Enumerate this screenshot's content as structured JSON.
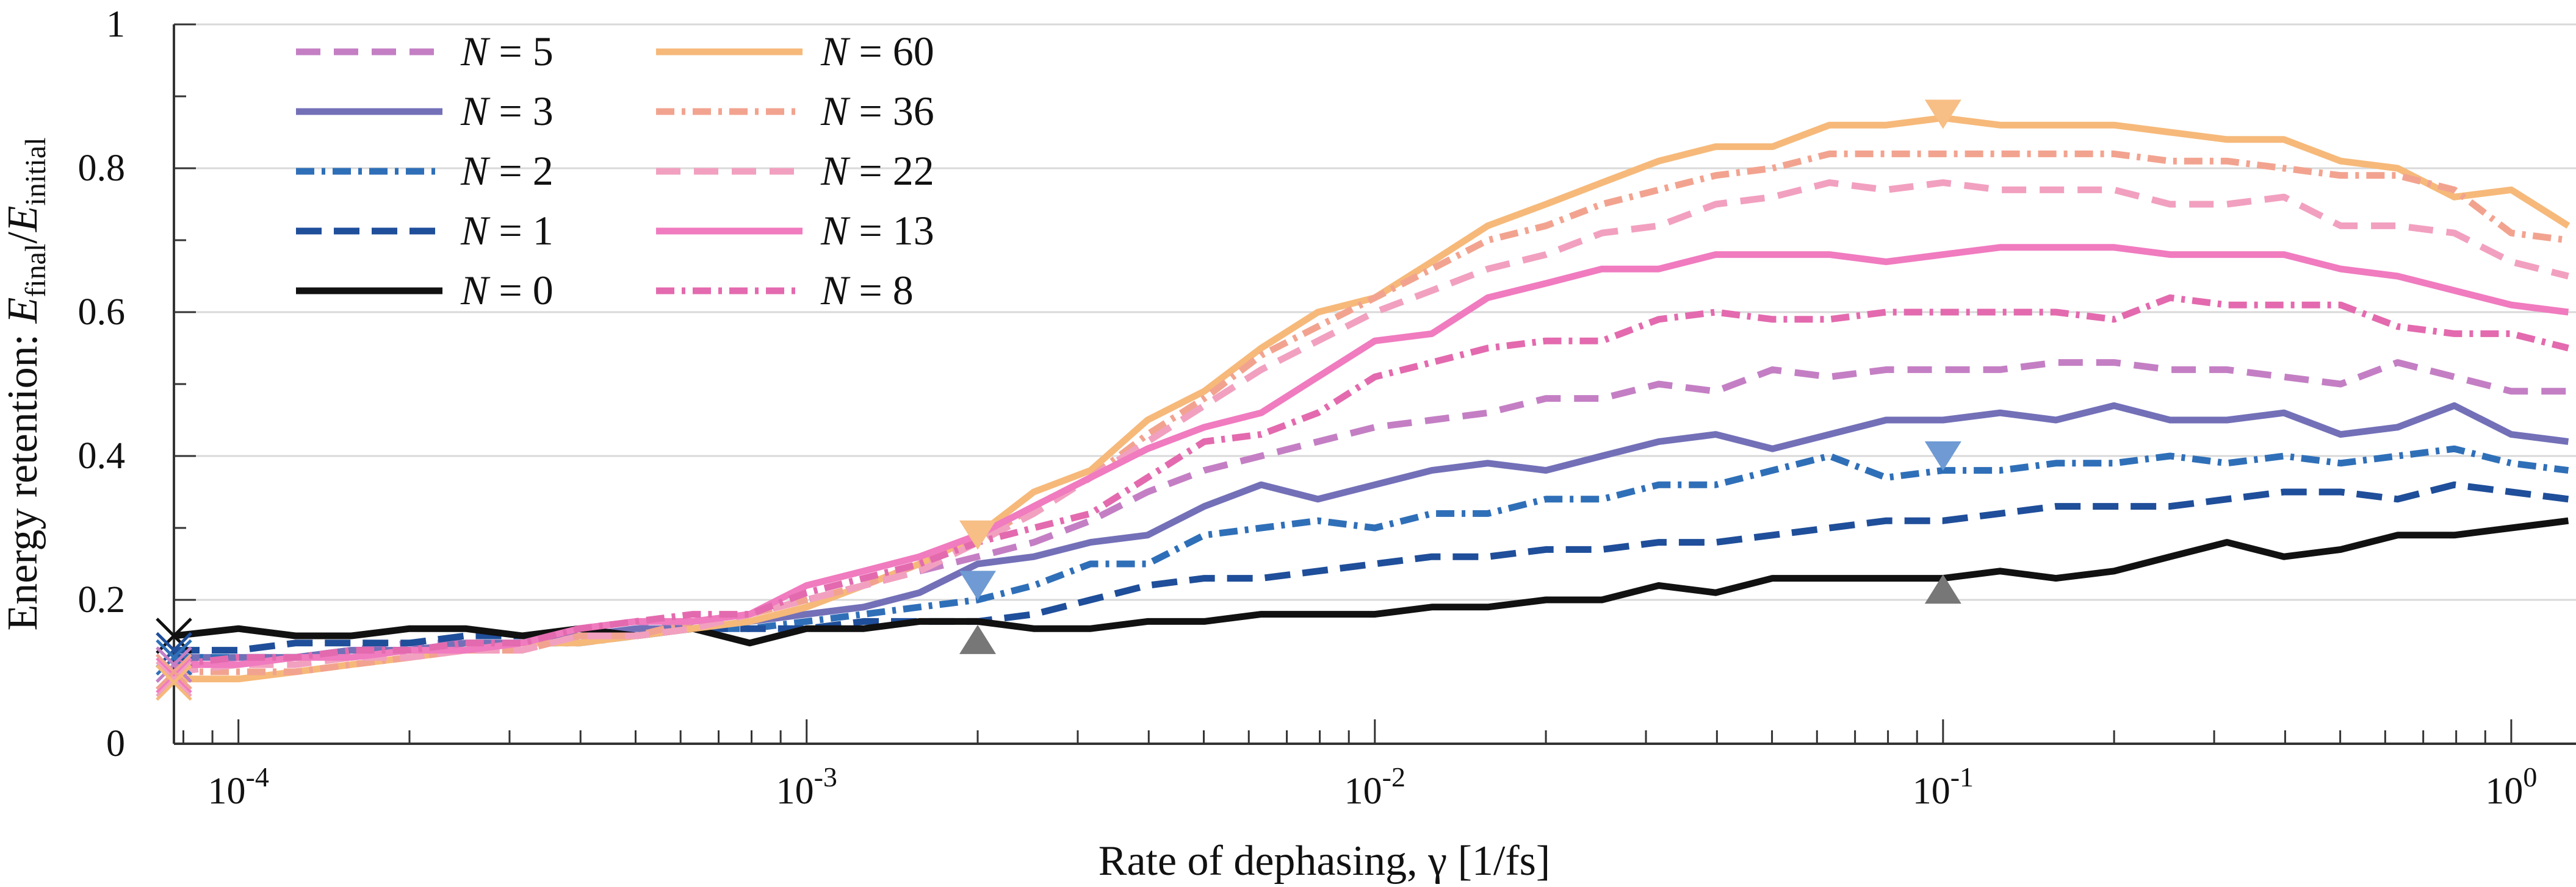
{
  "chart_data": {
    "type": "line",
    "title": "",
    "xlabel": "Rate of dephasing, γ [1/fs]",
    "ylabel": "Energy retention: E_final/E_initial",
    "ylabel_parts": {
      "prefix": "Energy retention: ",
      "num": "E",
      "num_sub": "final",
      "slash": "/",
      "den": "E",
      "den_sub": "initial"
    },
    "xscale": "log",
    "xlim": [
      7.7e-05,
      1.3
    ],
    "ylim": [
      0,
      1
    ],
    "grid": "horizontal",
    "yticks": [
      0,
      0.2,
      0.4,
      0.6,
      0.8,
      1
    ],
    "ytick_labels": [
      "0",
      "0.2",
      "0.4",
      "0.6",
      "0.8",
      "1"
    ],
    "xticks": [
      {
        "value": 0.0001,
        "base": "10",
        "exp": "-4"
      },
      {
        "value": 0.001,
        "base": "10",
        "exp": "-3"
      },
      {
        "value": 0.01,
        "base": "10",
        "exp": "-2"
      },
      {
        "value": 0.1,
        "base": "10",
        "exp": "-1"
      },
      {
        "value": 1,
        "base": "10",
        "exp": "0"
      }
    ],
    "x": [
      0.0001,
      0.000126,
      0.000158,
      0.0002,
      0.000251,
      0.000316,
      0.000398,
      0.000501,
      0.000631,
      0.000794,
      0.001,
      0.00126,
      0.00158,
      0.002,
      0.00251,
      0.00316,
      0.00398,
      0.00501,
      0.00631,
      0.00794,
      0.01,
      0.0126,
      0.0158,
      0.02,
      0.0251,
      0.0316,
      0.0398,
      0.0501,
      0.0631,
      0.0794,
      0.1,
      0.126,
      0.158,
      0.2,
      0.251,
      0.316,
      0.398,
      0.501,
      0.631,
      0.794,
      1,
      1.26
    ],
    "legend": {
      "location": "top-left",
      "columns": 2
    },
    "series": [
      {
        "name": "N = 5",
        "label_n": "N",
        "label_eq": " = ",
        "label_val": "5",
        "color": "#c47fc4",
        "dash": "40 22",
        "y0": 0.11,
        "y": [
          0.12,
          0.12,
          0.13,
          0.14,
          0.14,
          0.14,
          0.16,
          0.17,
          0.16,
          0.18,
          0.2,
          0.22,
          0.24,
          0.26,
          0.28,
          0.31,
          0.35,
          0.38,
          0.4,
          0.42,
          0.44,
          0.45,
          0.46,
          0.48,
          0.48,
          0.5,
          0.49,
          0.52,
          0.51,
          0.52,
          0.52,
          0.52,
          0.53,
          0.53,
          0.52,
          0.52,
          0.51,
          0.5,
          0.53,
          0.51,
          0.49,
          0.49
        ]
      },
      {
        "name": "N = 3",
        "label_n": "N",
        "label_eq": " = ",
        "label_val": "3",
        "color": "#7370b8",
        "dash": "",
        "y0": 0.12,
        "y": [
          0.12,
          0.12,
          0.13,
          0.13,
          0.14,
          0.14,
          0.15,
          0.16,
          0.16,
          0.17,
          0.18,
          0.19,
          0.21,
          0.25,
          0.26,
          0.28,
          0.29,
          0.33,
          0.36,
          0.34,
          0.36,
          0.38,
          0.39,
          0.38,
          0.4,
          0.42,
          0.43,
          0.41,
          0.43,
          0.45,
          0.45,
          0.46,
          0.45,
          0.47,
          0.45,
          0.45,
          0.46,
          0.43,
          0.44,
          0.47,
          0.43,
          0.42
        ]
      },
      {
        "name": "N = 2",
        "label_n": "N",
        "label_eq": " = ",
        "label_val": "2",
        "color": "#2f6fb8",
        "dash": "30 12 6 12",
        "y0": 0.12,
        "y": [
          0.12,
          0.12,
          0.13,
          0.13,
          0.13,
          0.14,
          0.14,
          0.15,
          0.16,
          0.16,
          0.17,
          0.18,
          0.19,
          0.2,
          0.22,
          0.25,
          0.25,
          0.29,
          0.3,
          0.31,
          0.3,
          0.32,
          0.32,
          0.34,
          0.34,
          0.36,
          0.36,
          0.38,
          0.4,
          0.37,
          0.38,
          0.38,
          0.39,
          0.39,
          0.4,
          0.39,
          0.4,
          0.39,
          0.4,
          0.41,
          0.39,
          0.38
        ]
      },
      {
        "name": "N = 1",
        "label_n": "N",
        "label_eq": " = ",
        "label_val": "1",
        "color": "#1f4e9a",
        "dash": "42 20",
        "y0": 0.13,
        "y": [
          0.13,
          0.14,
          0.14,
          0.14,
          0.15,
          0.15,
          0.15,
          0.15,
          0.16,
          0.16,
          0.16,
          0.17,
          0.17,
          0.17,
          0.18,
          0.2,
          0.22,
          0.23,
          0.23,
          0.24,
          0.25,
          0.26,
          0.26,
          0.27,
          0.27,
          0.28,
          0.28,
          0.29,
          0.3,
          0.31,
          0.31,
          0.32,
          0.33,
          0.33,
          0.33,
          0.34,
          0.35,
          0.35,
          0.34,
          0.36,
          0.35,
          0.34
        ]
      },
      {
        "name": "N = 0",
        "label_n": "N",
        "label_eq": " = ",
        "label_val": "0",
        "color": "#111111",
        "dash": "",
        "y0": 0.15,
        "y": [
          0.16,
          0.15,
          0.15,
          0.16,
          0.16,
          0.15,
          0.16,
          0.15,
          0.16,
          0.14,
          0.16,
          0.16,
          0.17,
          0.17,
          0.16,
          0.16,
          0.17,
          0.17,
          0.18,
          0.18,
          0.18,
          0.19,
          0.19,
          0.2,
          0.2,
          0.22,
          0.21,
          0.23,
          0.23,
          0.23,
          0.23,
          0.24,
          0.23,
          0.24,
          0.26,
          0.28,
          0.26,
          0.27,
          0.29,
          0.29,
          0.3,
          0.31
        ]
      },
      {
        "name": "N = 60",
        "label_n": "N",
        "label_eq": " = ",
        "label_val": "60",
        "color": "#f6b97a",
        "dash": "",
        "y0": 0.09,
        "y": [
          0.09,
          0.1,
          0.11,
          0.12,
          0.13,
          0.14,
          0.14,
          0.15,
          0.16,
          0.17,
          0.19,
          0.22,
          0.25,
          0.29,
          0.35,
          0.38,
          0.45,
          0.49,
          0.55,
          0.6,
          0.62,
          0.67,
          0.72,
          0.75,
          0.78,
          0.81,
          0.83,
          0.83,
          0.86,
          0.86,
          0.87,
          0.86,
          0.86,
          0.86,
          0.85,
          0.84,
          0.84,
          0.81,
          0.8,
          0.76,
          0.77,
          0.72
        ]
      },
      {
        "name": "N = 36",
        "label_n": "N",
        "label_eq": " = ",
        "label_val": "36",
        "color": "#f2a38f",
        "dash": "30 12 6 12",
        "y0": 0.1,
        "y": [
          0.1,
          0.1,
          0.11,
          0.12,
          0.13,
          0.13,
          0.15,
          0.15,
          0.17,
          0.18,
          0.2,
          0.22,
          0.25,
          0.28,
          0.33,
          0.37,
          0.43,
          0.48,
          0.54,
          0.58,
          0.62,
          0.66,
          0.7,
          0.72,
          0.75,
          0.77,
          0.79,
          0.8,
          0.82,
          0.82,
          0.82,
          0.82,
          0.82,
          0.82,
          0.81,
          0.81,
          0.8,
          0.79,
          0.79,
          0.77,
          0.71,
          0.7
        ]
      },
      {
        "name": "N = 22",
        "label_n": "N",
        "label_eq": " = ",
        "label_val": "22",
        "color": "#f2a0bf",
        "dash": "40 22",
        "y0": 0.1,
        "y": [
          0.11,
          0.11,
          0.12,
          0.12,
          0.13,
          0.13,
          0.15,
          0.15,
          0.16,
          0.18,
          0.2,
          0.22,
          0.24,
          0.28,
          0.32,
          0.37,
          0.42,
          0.47,
          0.52,
          0.56,
          0.6,
          0.63,
          0.66,
          0.68,
          0.71,
          0.72,
          0.75,
          0.76,
          0.78,
          0.77,
          0.78,
          0.77,
          0.77,
          0.77,
          0.75,
          0.75,
          0.76,
          0.72,
          0.72,
          0.71,
          0.67,
          0.65
        ]
      },
      {
        "name": "N = 13",
        "label_n": "N",
        "label_eq": " = ",
        "label_val": "13",
        "color": "#f07bbf",
        "dash": "",
        "y0": 0.11,
        "y": [
          0.11,
          0.12,
          0.12,
          0.13,
          0.13,
          0.14,
          0.16,
          0.17,
          0.17,
          0.18,
          0.22,
          0.24,
          0.26,
          0.29,
          0.33,
          0.37,
          0.41,
          0.44,
          0.46,
          0.51,
          0.56,
          0.57,
          0.62,
          0.64,
          0.66,
          0.66,
          0.68,
          0.68,
          0.68,
          0.67,
          0.68,
          0.69,
          0.69,
          0.69,
          0.68,
          0.68,
          0.68,
          0.66,
          0.65,
          0.63,
          0.61,
          0.6
        ]
      },
      {
        "name": "N = 8",
        "label_n": "N",
        "label_eq": " = ",
        "label_val": "8",
        "color": "#e36aae",
        "dash": "30 12 6 12",
        "y0": 0.11,
        "y": [
          0.12,
          0.12,
          0.13,
          0.13,
          0.14,
          0.14,
          0.16,
          0.17,
          0.18,
          0.18,
          0.21,
          0.23,
          0.25,
          0.28,
          0.3,
          0.32,
          0.37,
          0.42,
          0.43,
          0.46,
          0.51,
          0.53,
          0.55,
          0.56,
          0.56,
          0.59,
          0.6,
          0.59,
          0.59,
          0.6,
          0.6,
          0.6,
          0.6,
          0.59,
          0.62,
          0.61,
          0.61,
          0.61,
          0.58,
          0.57,
          0.57,
          0.55
        ]
      }
    ],
    "markers": [
      {
        "x": 0.002,
        "y": 0.29,
        "shape": "triangle-down",
        "color": "#f7be85"
      },
      {
        "x": 0.1,
        "y": 0.875,
        "shape": "triangle-down",
        "color": "#f7be85"
      },
      {
        "x": 0.002,
        "y": 0.22,
        "shape": "triangle-down",
        "color": "#6f9ad4"
      },
      {
        "x": 0.1,
        "y": 0.4,
        "shape": "triangle-down",
        "color": "#6f9ad4"
      },
      {
        "x": 0.002,
        "y": 0.145,
        "shape": "triangle-up",
        "color": "#777777"
      },
      {
        "x": 0.1,
        "y": 0.215,
        "shape": "triangle-up",
        "color": "#777777"
      }
    ],
    "start_markers": [
      {
        "y": 0.15,
        "color": "#111111"
      },
      {
        "y": 0.13,
        "color": "#1f4e9a"
      },
      {
        "y": 0.12,
        "color": "#2f6fb8"
      },
      {
        "y": 0.11,
        "color": "#7370b8"
      },
      {
        "y": 0.11,
        "color": "#c47fc4"
      },
      {
        "y": 0.1,
        "color": "#e36aae"
      },
      {
        "y": 0.095,
        "color": "#f07bbf"
      },
      {
        "y": 0.09,
        "color": "#f2a0bf"
      },
      {
        "y": 0.1,
        "color": "#f2a38f"
      },
      {
        "y": 0.085,
        "color": "#f6b97a"
      }
    ]
  }
}
